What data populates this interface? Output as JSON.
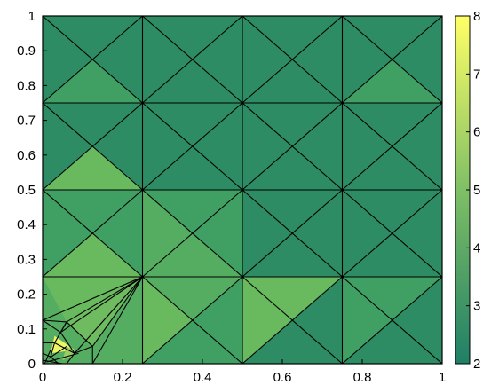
{
  "chart_data": {
    "type": "heatmap",
    "title": "",
    "xlabel": "",
    "ylabel": "",
    "xlim": [
      0,
      1
    ],
    "ylim": [
      0,
      1
    ],
    "grid": false,
    "x_ticks": [
      0,
      0.2,
      0.4,
      0.6,
      0.8,
      1
    ],
    "x_tick_labels": [
      "0",
      "0.2",
      "0.4",
      "0.6",
      "0.8",
      "1"
    ],
    "y_ticks": [
      0,
      0.1,
      0.2,
      0.3,
      0.4,
      0.5,
      0.6,
      0.7,
      0.8,
      0.9,
      1
    ],
    "y_tick_labels": [
      "0",
      "0.1",
      "0.2",
      "0.3",
      "0.4",
      "0.5",
      "0.6",
      "0.7",
      "0.8",
      "0.9",
      "1"
    ],
    "colorbar": {
      "range": [
        2,
        8
      ],
      "ticks": [
        2,
        3,
        4,
        5,
        6,
        7,
        8
      ],
      "tick_labels": [
        "2",
        "3",
        "4",
        "5",
        "6",
        "7",
        "8"
      ],
      "colormap": "summer",
      "color_low": "#2e8b62",
      "color_high": "#ffff66"
    },
    "cells": [
      {
        "cx": 0.125,
        "cy": 0.875,
        "level": 2
      },
      {
        "cx": 0.375,
        "cy": 0.875,
        "level": 2
      },
      {
        "cx": 0.625,
        "cy": 0.875,
        "level": 2
      },
      {
        "cx": 0.875,
        "cy": 0.875,
        "level": 2
      },
      {
        "cx": 0.125,
        "cy": 0.625,
        "level": 2
      },
      {
        "cx": 0.375,
        "cy": 0.625,
        "level": 2
      },
      {
        "cx": 0.625,
        "cy": 0.625,
        "level": 2
      },
      {
        "cx": 0.875,
        "cy": 0.625,
        "level": 2
      },
      {
        "cx": 0.125,
        "cy": 0.375,
        "level": 3
      },
      {
        "cx": 0.375,
        "cy": 0.375,
        "level": 3
      },
      {
        "cx": 0.625,
        "cy": 0.375,
        "level": 2
      },
      {
        "cx": 0.875,
        "cy": 0.375,
        "level": 2
      },
      {
        "cx": 0.375,
        "cy": 0.125,
        "level": 3
      },
      {
        "cx": 0.625,
        "cy": 0.125,
        "level": 2
      },
      {
        "cx": 0.875,
        "cy": 0.125,
        "level": 2
      }
    ],
    "triangles": [
      {
        "cx": 0.875,
        "cy": 0.875,
        "side": "bottom",
        "level": 3
      },
      {
        "cx": 0.125,
        "cy": 0.875,
        "side": "bottom",
        "level": 3
      },
      {
        "cx": 0.125,
        "cy": 0.625,
        "side": "bottom",
        "level": 4
      },
      {
        "cx": 0.125,
        "cy": 0.375,
        "side": "bottom",
        "level": 4
      },
      {
        "cx": 0.375,
        "cy": 0.375,
        "side": "bottom",
        "level": 3.5
      },
      {
        "cx": 0.375,
        "cy": 0.375,
        "side": "left",
        "level": 3.5
      },
      {
        "cx": 0.375,
        "cy": 0.125,
        "side": "left",
        "level": 4
      },
      {
        "cx": 0.375,
        "cy": 0.125,
        "side": "top",
        "level": 3.5
      },
      {
        "cx": 0.625,
        "cy": 0.125,
        "side": "left",
        "level": 4
      },
      {
        "cx": 0.625,
        "cy": 0.125,
        "side": "top",
        "level": 4
      },
      {
        "cx": 0.875,
        "cy": 0.125,
        "side": "left",
        "level": 3
      },
      {
        "cx": 0.875,
        "cy": 0.125,
        "side": "top",
        "level": 3
      }
    ],
    "refined_corner": {
      "x_max": 0.25,
      "y_max": 0.25,
      "level": 3.5,
      "highlights": [
        {
          "pts": [
            [
              0,
              0.25
            ],
            [
              0.25,
              0.25
            ],
            [
              0.06,
              0.12
            ]
          ],
          "level": 4
        },
        {
          "pts": [
            [
              0.25,
              0.25
            ],
            [
              0.125,
              0.05
            ],
            [
              0.06,
              0.12
            ]
          ],
          "level": 4.2
        },
        {
          "pts": [
            [
              0.02,
              0.03
            ],
            [
              0.08,
              0.04
            ],
            [
              0.03,
              0.08
            ]
          ],
          "level": 7.5
        },
        {
          "pts": [
            [
              0.05,
              0.01
            ],
            [
              0.09,
              0.03
            ],
            [
              0.06,
              0.05
            ]
          ],
          "level": 5.5
        }
      ]
    }
  }
}
